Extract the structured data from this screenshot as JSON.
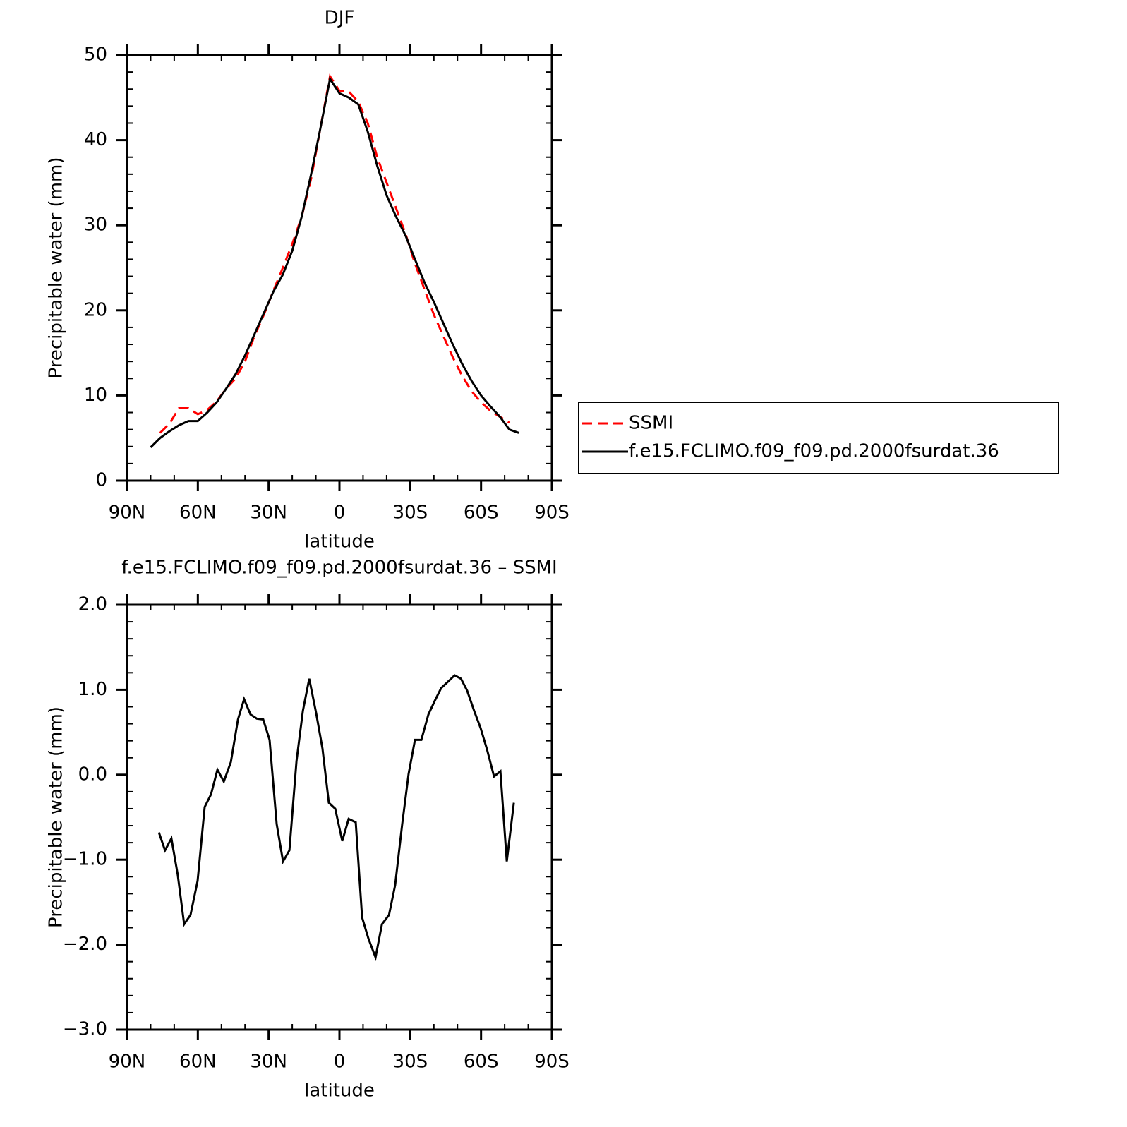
{
  "chart_data": [
    {
      "type": "line",
      "title": "DJF",
      "xlabel": "latitude",
      "ylabel": "Precipitable water (mm)",
      "x": [
        80,
        76,
        72,
        68,
        64,
        60,
        56,
        52,
        48,
        44,
        40,
        36,
        32,
        28,
        24,
        20,
        16,
        12,
        8,
        4,
        0,
        -4,
        -8,
        -12,
        -16,
        -20,
        -24,
        -28,
        -32,
        -36,
        -40,
        -44,
        -48,
        -52,
        -56,
        -60,
        -64,
        -68,
        -72,
        -76
      ],
      "series": [
        {
          "name": "SSMI",
          "color": "#ff0000",
          "style": "dashed",
          "values": [
            null,
            5.6,
            6.7,
            8.5,
            8.5,
            7.8,
            8.3,
            9.3,
            10.8,
            12.0,
            14.0,
            17.0,
            19.5,
            22.3,
            25.0,
            27.8,
            31.0,
            35.5,
            41.5,
            47.5,
            45.8,
            45.7,
            44.5,
            42.0,
            38.0,
            35.0,
            32.0,
            29.0,
            25.5,
            22.5,
            19.5,
            17.0,
            14.5,
            12.3,
            10.5,
            9.2,
            8.2,
            7.5,
            6.8,
            null
          ]
        },
        {
          "name": "f.e15.FCLIMO.f09_f09.pd.2000fsurdat.36",
          "color": "#000000",
          "style": "solid",
          "values": [
            3.9,
            5.0,
            5.8,
            6.5,
            7.0,
            7.0,
            8.0,
            9.2,
            10.8,
            12.5,
            14.7,
            17.2,
            19.7,
            22.2,
            24.2,
            27.0,
            31.0,
            36.0,
            41.5,
            47.2,
            45.5,
            45.0,
            44.2,
            41.0,
            37.0,
            33.5,
            31.0,
            28.8,
            26.0,
            23.3,
            21.0,
            18.5,
            16.0,
            13.7,
            11.7,
            10.0,
            8.7,
            7.5,
            6.0,
            5.6
          ]
        }
      ],
      "xlim": [
        90,
        -90
      ],
      "xticks": [
        {
          "value": 90,
          "label": "90N"
        },
        {
          "value": 60,
          "label": "60N"
        },
        {
          "value": 30,
          "label": "30N"
        },
        0,
        {
          "value": -30,
          "label": "30S"
        },
        {
          "value": -60,
          "label": "60S"
        },
        {
          "value": -90,
          "label": "90S"
        }
      ],
      "ylim": [
        0,
        50
      ],
      "yticks": [
        0,
        10,
        20,
        30,
        40,
        50
      ],
      "legend": "right"
    },
    {
      "type": "line",
      "title": "f.e15.FCLIMO.f09_f09.pd.2000fsurdat.36 – SSMI",
      "xlabel": "latitude",
      "ylabel": "Precipitable water (mm)",
      "x": [
        76.5,
        73.9,
        71.2,
        68.5,
        65.8,
        63.1,
        60.1,
        57.1,
        54.4,
        51.7,
        49.0,
        46.0,
        43.0,
        40.4,
        37.7,
        35.0,
        32.3,
        29.6,
        26.6,
        23.9,
        21.2,
        18.2,
        15.5,
        12.8,
        9.9,
        7.2,
        4.5,
        1.8,
        -1.2,
        -3.9,
        -6.9,
        -9.6,
        -12.3,
        -15.3,
        -18.0,
        -21.0,
        -23.6,
        -26.6,
        -29.3,
        -32.0,
        -34.7,
        -37.7,
        -40.4,
        -43.1,
        -45.8,
        -48.8,
        -51.5,
        -54.1,
        -57.1,
        -59.8,
        -62.5,
        -65.5,
        -68.2,
        -70.9,
        -73.9
      ],
      "series": [
        {
          "name": "f.e15.FCLIMO.f09_f09.pd.2000fsurdat.36 – SSMI",
          "color": "#000000",
          "style": "solid",
          "values": [
            -0.68,
            -0.89,
            -0.75,
            -1.18,
            -1.76,
            -1.65,
            -1.25,
            -0.38,
            -0.23,
            0.06,
            -0.08,
            0.15,
            0.65,
            0.89,
            0.71,
            0.66,
            0.65,
            0.41,
            -0.58,
            -1.02,
            -0.89,
            0.16,
            0.75,
            1.13,
            0.73,
            0.31,
            -0.33,
            -0.4,
            -0.78,
            -0.52,
            -0.56,
            -1.68,
            -1.93,
            -2.15,
            -1.76,
            -1.65,
            -1.3,
            -0.58,
            0.01,
            0.41,
            0.41,
            0.71,
            0.87,
            1.02,
            1.09,
            1.17,
            1.13,
            0.99,
            0.75,
            0.55,
            0.3,
            -0.02,
            0.04,
            -1.02,
            -0.33
          ]
        }
      ],
      "xlim": [
        90,
        -90
      ],
      "xticks": [
        {
          "value": 90,
          "label": "90N"
        },
        {
          "value": 60,
          "label": "60N"
        },
        {
          "value": 30,
          "label": "30N"
        },
        0,
        {
          "value": -30,
          "label": "30S"
        },
        {
          "value": -60,
          "label": "60S"
        },
        {
          "value": -90,
          "label": "90S"
        }
      ],
      "ylim": [
        -3,
        2
      ],
      "yticks": [
        {
          "value": -3,
          "label": "−3.0"
        },
        {
          "value": -2,
          "label": "−2.0"
        },
        {
          "value": -1,
          "label": "−1.0"
        },
        {
          "value": 0,
          "label": "0.0"
        },
        {
          "value": 1,
          "label": "1.0"
        },
        {
          "value": 2,
          "label": "2.0"
        }
      ]
    }
  ]
}
